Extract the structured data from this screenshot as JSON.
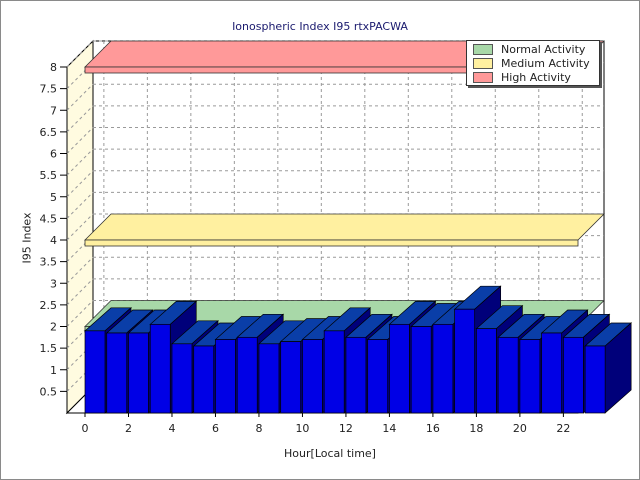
{
  "chart_data": {
    "type": "bar",
    "title": "Ionospheric Index I95 rtxPACWA",
    "xlabel": "Hour[Local time]",
    "ylabel": "I95 Index",
    "ylim": [
      0,
      8
    ],
    "yticks": [
      "0.5",
      "1",
      "1.5",
      "2",
      "2.5",
      "3",
      "3.5",
      "4",
      "4.5",
      "5",
      "5.5",
      "6",
      "6.5",
      "7",
      "7.5",
      "8"
    ],
    "xticks": [
      "0",
      "2",
      "4",
      "6",
      "8",
      "10",
      "12",
      "14",
      "16",
      "18",
      "20",
      "22"
    ],
    "x": [
      0,
      1,
      2,
      3,
      4,
      5,
      6,
      7,
      8,
      9,
      10,
      11,
      12,
      13,
      14,
      15,
      16,
      17,
      18,
      19,
      20,
      21,
      22,
      23
    ],
    "values": [
      1.9,
      1.85,
      1.85,
      2.05,
      1.6,
      1.55,
      1.7,
      1.75,
      1.6,
      1.65,
      1.7,
      1.9,
      1.75,
      1.7,
      2.05,
      2.0,
      2.05,
      2.4,
      1.95,
      1.75,
      1.7,
      1.85,
      1.75,
      1.55
    ],
    "bar_color": "#0000e6",
    "bands": [
      {
        "name": "Normal Activity",
        "value": 2.0,
        "color": "#a8d8a8"
      },
      {
        "name": "Medium Activity",
        "value": 4.0,
        "color": "#fff0a0"
      },
      {
        "name": "High Activity",
        "value": 8.0,
        "color": "#ff9999"
      }
    ],
    "grid": true,
    "legend_position": "top-right"
  }
}
